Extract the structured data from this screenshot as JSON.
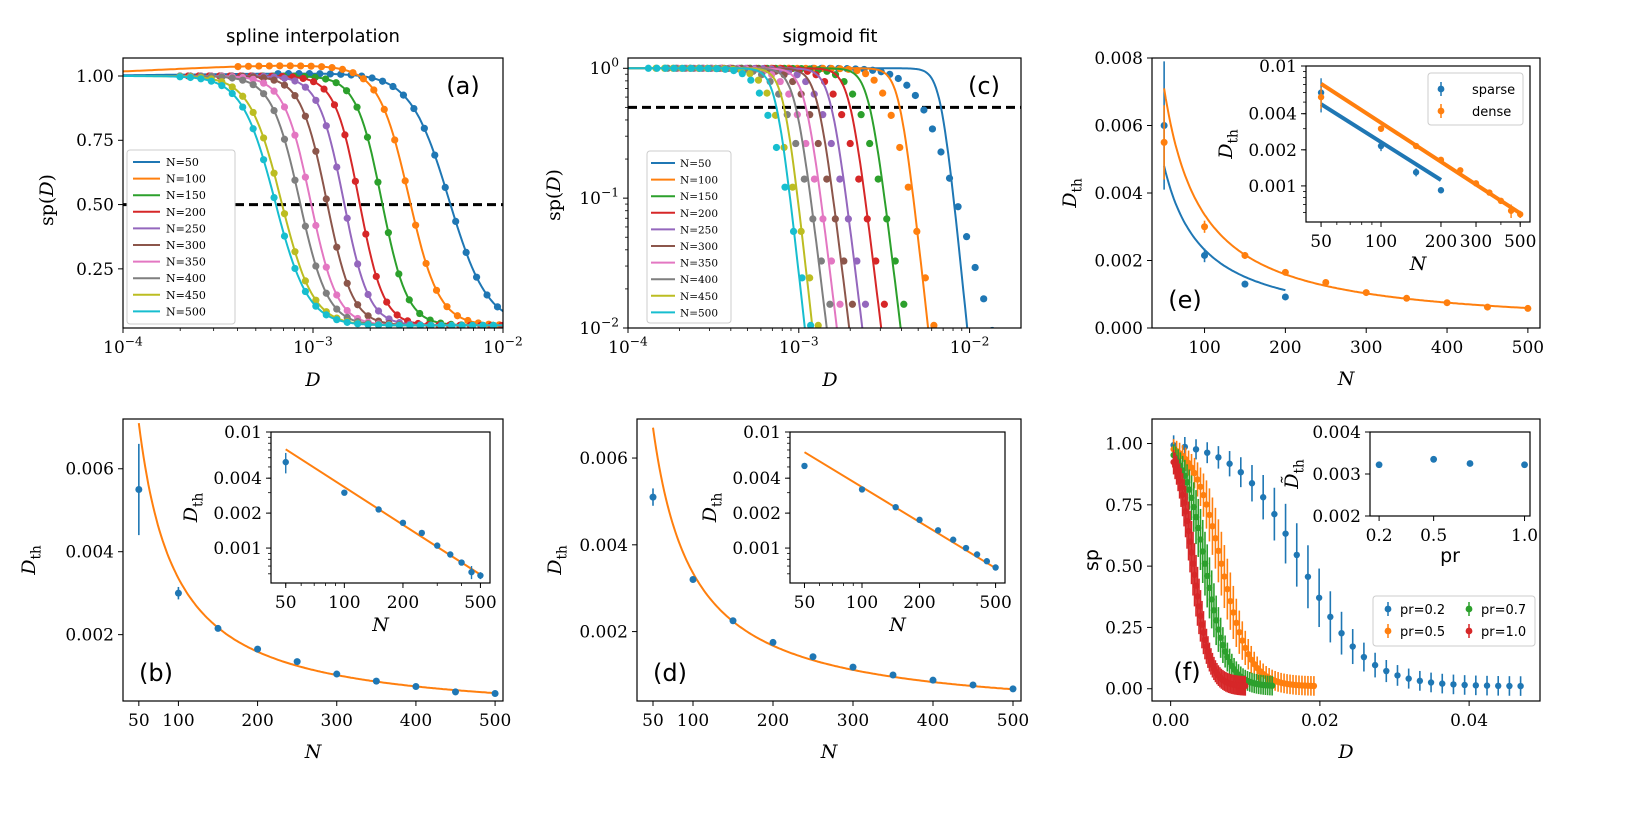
{
  "figure": {
    "width": 1644,
    "height": 822
  },
  "colors": {
    "tab": [
      "#1f77b4",
      "#ff7f0e",
      "#2ca02c",
      "#d62728",
      "#9467bd",
      "#8c564b",
      "#e377c2",
      "#7f7f7f",
      "#bcbd22",
      "#17becf"
    ],
    "threshold": "#000000"
  },
  "legend_N": [
    "N=50",
    "N=100",
    "N=150",
    "N=200",
    "N=250",
    "N=300",
    "N=350",
    "N=400",
    "N=450",
    "N=500"
  ],
  "chart_data": [
    {
      "id": "a",
      "type": "line",
      "title": "spline interpolation",
      "panel_label": "(a)",
      "xlabel": "D",
      "ylabel": "sp(D)",
      "xscale": "log",
      "xlim": [
        0.0001,
        0.01
      ],
      "ylim": [
        0.02,
        1.07
      ],
      "xticks": [
        "10^-4",
        "10^-3",
        "10^-2"
      ],
      "yticks": [
        "0.25",
        "0.50",
        "0.75",
        "1.00"
      ],
      "threshold": 0.5,
      "legend_position": "center-left",
      "series": [
        {
          "name": "N=50",
          "d50": 0.0052,
          "k": 4.3
        },
        {
          "name": "N=100",
          "d50": 0.0032,
          "k": 5.5
        },
        {
          "name": "N=150",
          "d50": 0.0023,
          "k": 6.5
        },
        {
          "name": "N=200",
          "d50": 0.00175,
          "k": 6.8
        },
        {
          "name": "N=250",
          "d50": 0.00145,
          "k": 6.6
        },
        {
          "name": "N=300",
          "d50": 0.00118,
          "k": 6.4
        },
        {
          "name": "N=350",
          "d50": 0.00097,
          "k": 6.2
        },
        {
          "name": "N=400",
          "d50": 0.00085,
          "k": 5.9
        },
        {
          "name": "N=450",
          "d50": 0.00068,
          "k": 5.2
        },
        {
          "name": "N=500",
          "d50": 0.00063,
          "k": 5.0
        }
      ]
    },
    {
      "id": "c",
      "type": "line",
      "title": "sigmoid fit",
      "panel_label": "(c)",
      "xlabel": "D",
      "ylabel": "sp(D)",
      "xscale": "log",
      "yscale": "log",
      "xlim": [
        0.0001,
        0.02
      ],
      "ylim": [
        0.01,
        1.2
      ],
      "xticks": [
        "10^-4",
        "10^-3",
        "10^-2"
      ],
      "yticks": [
        "10^-2",
        "10^-1",
        "10^0"
      ],
      "threshold": 0.5,
      "legend_position": "lower-left",
      "series": [
        {
          "name": "N=50",
          "d50": 0.0068,
          "k": 13
        },
        {
          "name": "N=100",
          "d50": 0.0039,
          "k": 12
        },
        {
          "name": "N=150",
          "d50": 0.0026,
          "k": 11
        },
        {
          "name": "N=200",
          "d50": 0.002,
          "k": 11
        },
        {
          "name": "N=250",
          "d50": 0.00155,
          "k": 11
        },
        {
          "name": "N=300",
          "d50": 0.0013,
          "k": 11
        },
        {
          "name": "N=350",
          "d50": 0.0011,
          "k": 11
        },
        {
          "name": "N=400",
          "d50": 0.00096,
          "k": 11
        },
        {
          "name": "N=450",
          "d50": 0.00082,
          "k": 12
        },
        {
          "name": "N=500",
          "d50": 0.00074,
          "k": 12
        }
      ]
    },
    {
      "id": "e",
      "type": "scatter",
      "panel_label": "(e)",
      "xlabel": "N",
      "ylabel": "D_th",
      "xlim": [
        35,
        515
      ],
      "ylim": [
        0,
        0.008
      ],
      "xticks": [
        "100",
        "200",
        "300",
        "400",
        "500"
      ],
      "yticks": [
        "0.000",
        "0.002",
        "0.004",
        "0.006",
        "0.008"
      ],
      "series": [
        {
          "name": "sparse",
          "x": [
            50,
            100,
            150,
            200
          ],
          "y": [
            0.006,
            0.00215,
            0.0013,
            0.00092
          ],
          "err": [
            0.0019,
            0.0002,
            0.0001,
            5e-05
          ],
          "fit": {
            "a": 0.0048,
            "x0": 50,
            "b": 1.05
          }
        },
        {
          "name": "dense",
          "x": [
            50,
            100,
            150,
            200,
            250,
            300,
            350,
            400,
            450,
            500
          ],
          "y": [
            0.0055,
            0.003,
            0.00215,
            0.00165,
            0.00135,
            0.00105,
            0.00088,
            0.00075,
            0.00062,
            0.00058
          ],
          "err": [
            0.0011,
            0.00018,
            0.0001,
            5e-05,
            4e-05,
            6e-05,
            4e-05,
            4e-05,
            8e-05,
            4e-05
          ],
          "fit": {
            "a": 0.0071,
            "x0": 50,
            "b": 1.08
          }
        }
      ],
      "inset": {
        "xscale": "log",
        "yscale": "log",
        "xlim": [
          42,
          560
        ],
        "ylim": [
          0.0005,
          0.01
        ],
        "xticks": [
          "50",
          "100",
          "200",
          "300",
          "500"
        ],
        "yticks": [
          "0.001",
          "0.002",
          "0.004",
          "0.01"
        ],
        "xlabel": "N",
        "ylabel": "D_th",
        "legend": [
          "sparse",
          "dense"
        ]
      }
    },
    {
      "id": "b",
      "type": "scatter",
      "panel_label": "(b)",
      "xlabel": "N",
      "ylabel": "D_th",
      "xlim": [
        30,
        510
      ],
      "ylim": [
        0.0004,
        0.0072
      ],
      "xticks": [
        "50",
        "100",
        "200",
        "300",
        "400",
        "500"
      ],
      "yticks": [
        "0.002",
        "0.004",
        "0.006"
      ],
      "points": {
        "x": [
          50,
          100,
          150,
          200,
          250,
          300,
          350,
          400,
          450,
          500
        ],
        "y": [
          0.0055,
          0.003,
          0.00215,
          0.00165,
          0.00135,
          0.00105,
          0.00088,
          0.00075,
          0.00062,
          0.00058
        ],
        "err": [
          0.0011,
          0.00015,
          5e-05,
          4e-05,
          4e-05,
          6e-05,
          4e-05,
          4e-05,
          8e-05,
          4e-05
        ]
      },
      "fit": {
        "a": 0.0071,
        "x0": 50,
        "b": 1.08
      },
      "inset": {
        "xscale": "log",
        "yscale": "log",
        "xlim": [
          42,
          560
        ],
        "ylim": [
          0.0005,
          0.01
        ],
        "xticks": [
          "50",
          "100",
          "200",
          "500"
        ],
        "yticks": [
          "0.001",
          "0.002",
          "0.004",
          "0.01"
        ],
        "xlabel": "N",
        "ylabel": "D_th"
      }
    },
    {
      "id": "d",
      "type": "scatter",
      "panel_label": "(d)",
      "xlabel": "N",
      "ylabel": "D_th",
      "xlim": [
        30,
        510
      ],
      "ylim": [
        0.0004,
        0.0069
      ],
      "xticks": [
        "50",
        "100",
        "200",
        "300",
        "400",
        "500"
      ],
      "yticks": [
        "0.002",
        "0.004",
        "0.006"
      ],
      "points": {
        "x": [
          50,
          100,
          150,
          200,
          250,
          300,
          350,
          400,
          450,
          500
        ],
        "y": [
          0.0051,
          0.0032,
          0.00225,
          0.00175,
          0.00142,
          0.00118,
          0.001,
          0.00088,
          0.00077,
          0.00068
        ],
        "err": [
          0.0002,
          5e-05,
          4e-05,
          3e-05,
          3e-05,
          3e-05,
          3e-05,
          3e-05,
          3e-05,
          3e-05
        ]
      },
      "fit": {
        "a": 0.0067,
        "x0": 50,
        "b": 1.0
      },
      "inset": {
        "xscale": "log",
        "yscale": "log",
        "xlim": [
          42,
          560
        ],
        "ylim": [
          0.0005,
          0.01
        ],
        "xticks": [
          "50",
          "100",
          "200",
          "500"
        ],
        "yticks": [
          "0.001",
          "0.002",
          "0.004",
          "0.01"
        ],
        "xlabel": "N",
        "ylabel": "D_th"
      }
    },
    {
      "id": "f",
      "type": "scatter",
      "panel_label": "(f)",
      "xlabel": "D",
      "ylabel": "sp",
      "xlim": [
        -0.0025,
        0.0495
      ],
      "ylim": [
        -0.05,
        1.1
      ],
      "xticks": [
        "0.00",
        "0.02",
        "0.04"
      ],
      "yticks": [
        "0.00",
        "0.25",
        "0.50",
        "0.75",
        "1.00"
      ],
      "series": [
        {
          "name": "pr=0.2",
          "d50": 0.0175,
          "w": 0.0042,
          "xmax": 0.048,
          "step": 0.0015
        },
        {
          "name": "pr=0.5",
          "d50": 0.0068,
          "w": 0.0019,
          "xmax": 0.0192,
          "step": 0.0004
        },
        {
          "name": "pr=0.7",
          "d50": 0.0046,
          "w": 0.0015,
          "xmax": 0.0138,
          "step": 0.0003
        },
        {
          "name": "pr=1.0",
          "d50": 0.003,
          "w": 0.0011,
          "xmax": 0.01,
          "step": 0.0002
        }
      ],
      "inset": {
        "xlabel": "pr",
        "ylabel": "D~_th",
        "xlim": [
          0.15,
          1.03
        ],
        "ylim": [
          0.002,
          0.004
        ],
        "xticks": [
          "0.2",
          "0.5",
          "1.0"
        ],
        "yticks": [
          "0.002",
          "0.003",
          "0.004"
        ],
        "x": [
          0.2,
          0.5,
          0.7,
          1.0
        ],
        "y": [
          0.00322,
          0.00335,
          0.00325,
          0.00322
        ],
        "err": [
          5e-05,
          5e-05,
          4e-05,
          5e-05
        ]
      }
    }
  ]
}
